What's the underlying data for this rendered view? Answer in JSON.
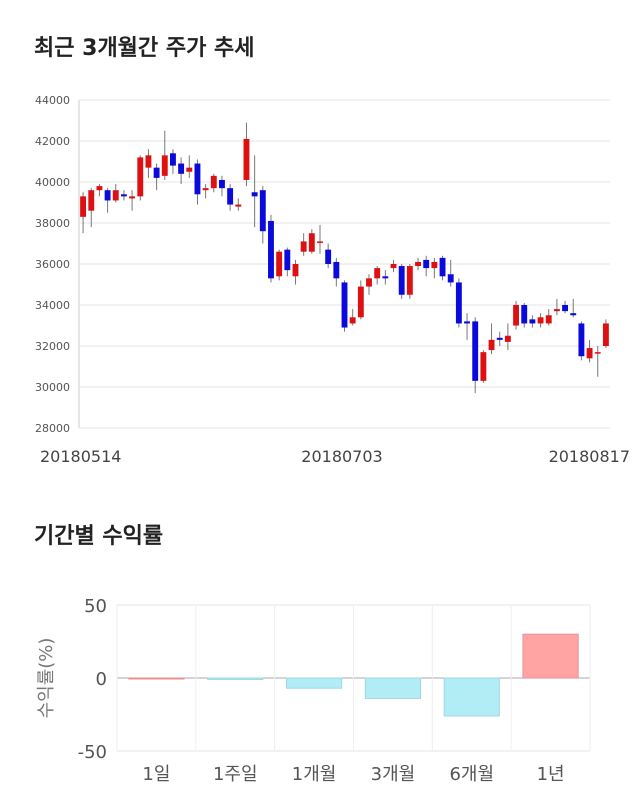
{
  "sections": {
    "price_title": "최근 3개월간 주가 추세",
    "return_title": "기간별 수익률"
  },
  "colors": {
    "up": "#dd1111",
    "down": "#0a0adc",
    "positive_bar": "#ffa3a3",
    "negative_bar": "#b2ecf4"
  },
  "chart_data": [
    {
      "type": "candlestick",
      "title": "",
      "xlabel": "",
      "ylabel": "",
      "ylim": [
        28000,
        44000
      ],
      "yticks": [
        "44000",
        "42000",
        "40000",
        "38000",
        "36000",
        "34000",
        "32000",
        "30000",
        "28000"
      ],
      "xtick_labels": [
        "20180514",
        "20180703",
        "20180817"
      ],
      "grid": true,
      "candles": [
        [
          38300,
          39300,
          37500,
          39500
        ],
        [
          38600,
          39600,
          37800,
          39700
        ],
        [
          39600,
          39800,
          39300,
          39900
        ],
        [
          39600,
          39100,
          38500,
          39700
        ],
        [
          39100,
          39600,
          39000,
          39900
        ],
        [
          39400,
          39300,
          39100,
          39600
        ],
        [
          39200,
          39300,
          38600,
          39600
        ],
        [
          39300,
          41200,
          39100,
          41300
        ],
        [
          40700,
          41300,
          40200,
          41600
        ],
        [
          40700,
          40200,
          39600,
          40900
        ],
        [
          40300,
          41300,
          40100,
          42500
        ],
        [
          41400,
          40800,
          40400,
          41600
        ],
        [
          40900,
          40400,
          39900,
          41200
        ],
        [
          40500,
          40700,
          40200,
          41300
        ],
        [
          40900,
          39400,
          38900,
          41100
        ],
        [
          39600,
          39700,
          39200,
          39900
        ],
        [
          39700,
          40300,
          39500,
          40400
        ],
        [
          40100,
          39700,
          39300,
          40300
        ],
        [
          39700,
          38900,
          38600,
          39900
        ],
        [
          38800,
          38900,
          38600,
          39200
        ],
        [
          40100,
          42100,
          39800,
          42900
        ],
        [
          39500,
          39300,
          37800,
          41300
        ],
        [
          39600,
          37600,
          37000,
          39800
        ],
        [
          38100,
          35300,
          35100,
          38400
        ],
        [
          35400,
          36600,
          35200,
          36700
        ],
        [
          36700,
          35700,
          35400,
          36800
        ],
        [
          35400,
          36000,
          35000,
          36200
        ],
        [
          36600,
          37100,
          36400,
          37500
        ],
        [
          36600,
          37500,
          36500,
          37700
        ],
        [
          37100,
          37100,
          36500,
          37900
        ],
        [
          36700,
          36000,
          35800,
          37000
        ],
        [
          36100,
          35300,
          34900,
          36300
        ],
        [
          35100,
          32900,
          32700,
          35200
        ],
        [
          33100,
          33400,
          33000,
          33800
        ],
        [
          33400,
          34900,
          33300,
          35200
        ],
        [
          34900,
          35300,
          34500,
          35500
        ],
        [
          35300,
          35800,
          35000,
          35900
        ],
        [
          35400,
          35300,
          35000,
          35700
        ],
        [
          35800,
          36000,
          35600,
          36200
        ],
        [
          35900,
          34500,
          34300,
          36000
        ],
        [
          34500,
          35900,
          34300,
          36000
        ],
        [
          35900,
          36100,
          35700,
          36300
        ],
        [
          36200,
          35800,
          35400,
          36400
        ],
        [
          35800,
          36100,
          35300,
          36300
        ],
        [
          36300,
          35400,
          35200,
          36400
        ],
        [
          35500,
          35100,
          34900,
          36200
        ],
        [
          35100,
          33100,
          32900,
          35300
        ],
        [
          33200,
          33100,
          32300,
          33600
        ],
        [
          33200,
          30300,
          29700,
          33400
        ],
        [
          30300,
          31700,
          30200,
          31800
        ],
        [
          31800,
          32300,
          31600,
          33100
        ],
        [
          32400,
          32300,
          32000,
          32700
        ],
        [
          32200,
          32500,
          31800,
          33100
        ],
        [
          33000,
          34000,
          32800,
          34200
        ],
        [
          34000,
          33100,
          32900,
          34100
        ],
        [
          33300,
          33100,
          32900,
          33500
        ],
        [
          33100,
          33400,
          32900,
          33600
        ],
        [
          33100,
          33500,
          33000,
          33800
        ],
        [
          33700,
          33800,
          33500,
          34300
        ],
        [
          34000,
          33700,
          33600,
          34200
        ],
        [
          33600,
          33500,
          33400,
          34300
        ],
        [
          33100,
          31500,
          31300,
          33200
        ],
        [
          31400,
          31900,
          31200,
          32300
        ],
        [
          31700,
          31700,
          30500,
          32000
        ],
        [
          32000,
          33100,
          31900,
          33300
        ]
      ]
    },
    {
      "type": "bar",
      "title": "",
      "xlabel": "",
      "ylabel": "수익률(%)",
      "ylim": [
        -50,
        50
      ],
      "yticks": [
        "50",
        "0",
        "-50"
      ],
      "categories": [
        "1일",
        "1주일",
        "1개월",
        "3개월",
        "6개월",
        "1년"
      ],
      "values": [
        0,
        -1,
        -7,
        -14,
        -26,
        30
      ]
    }
  ]
}
